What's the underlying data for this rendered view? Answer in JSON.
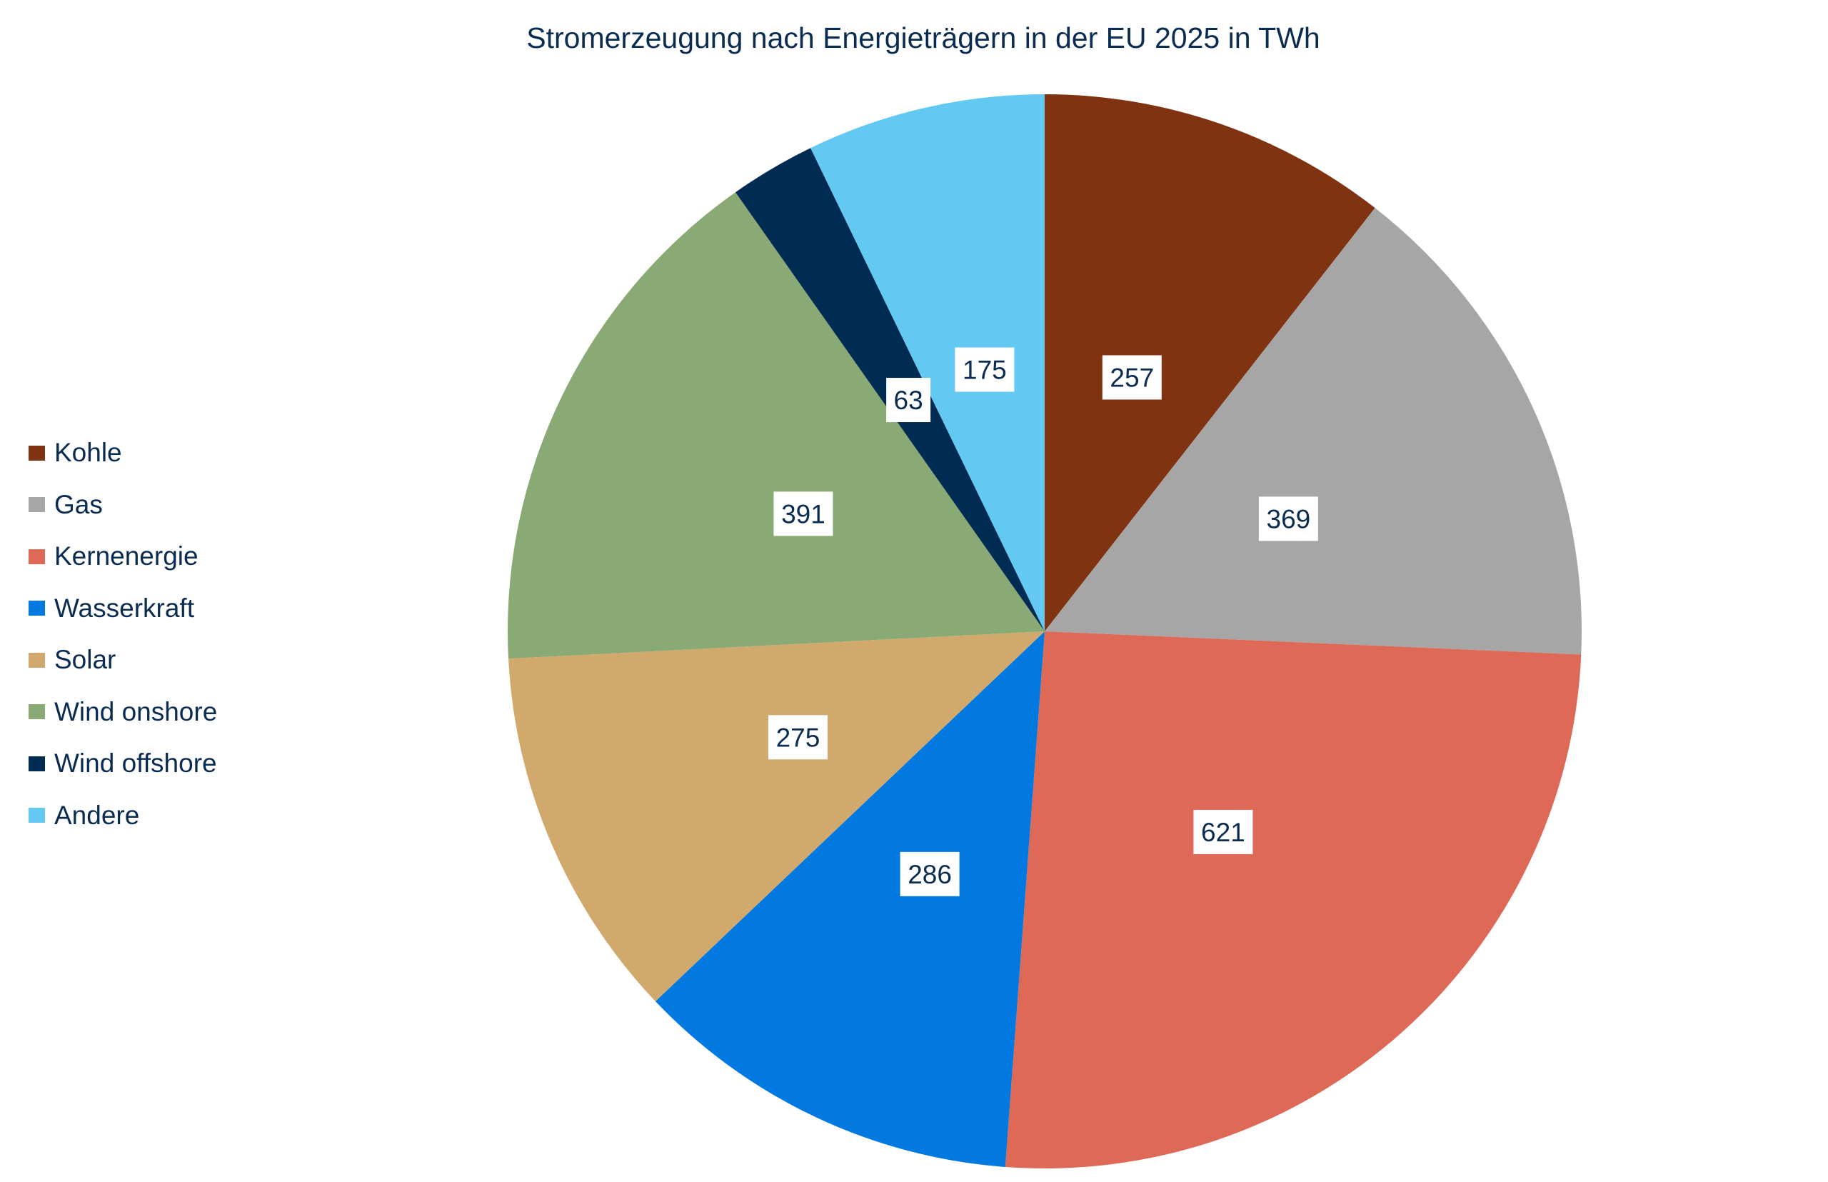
{
  "chart_data": {
    "type": "pie",
    "title": "Stromerzeugung nach Energieträgern in der EU 2025 in TWh",
    "start_angle": "12 o'clock",
    "direction": "clockwise",
    "legend_position": "left",
    "categories": [
      "Kohle",
      "Gas",
      "Kernenergie",
      "Wasserkraft",
      "Solar",
      "Wind onshore",
      "Wind offshore",
      "Andere"
    ],
    "values": [
      257,
      369,
      621,
      286,
      275,
      391,
      63,
      175
    ],
    "data_labels": [
      "257",
      "369",
      "621",
      "286",
      "275",
      "391",
      "63",
      "175"
    ],
    "colors": [
      "#7f3311",
      "#a6a6a6",
      "#dd6956",
      "#0179e0",
      "#d2a96c",
      "#8aaa75",
      "#002b52",
      "#63c9f2"
    ]
  }
}
